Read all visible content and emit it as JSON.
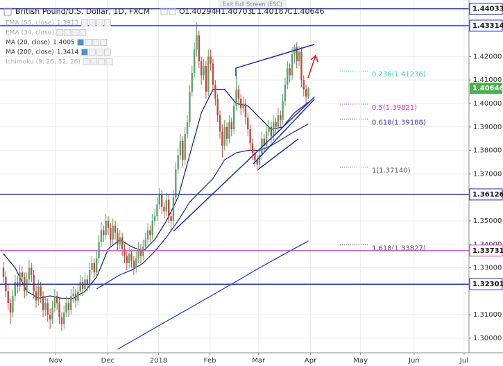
{
  "chart_data": {
    "type": "candlestick",
    "title": "British Pound/U.S. Dollar, 1D, FXCM",
    "ohlc_field_labels": [
      "O",
      "H",
      "L",
      "C"
    ],
    "exit_fullscreen": "Exit Full Screen (ESC)",
    "up_color": "#53a86a",
    "down_color": "#c9453a",
    "last_price_color": "#4caf50",
    "grid": true,
    "xlim": [
      -1.5,
      200
    ],
    "ylim": [
      1.29378,
      1.44408
    ],
    "xticks": [
      {
        "value": 22.4,
        "label": "Nov"
      },
      {
        "value": 44.8,
        "label": "Dec"
      },
      {
        "value": 66.6,
        "label": "2018"
      },
      {
        "value": 88.7,
        "label": "Feb"
      },
      {
        "value": 109.6,
        "label": "Mar"
      },
      {
        "value": 131.9,
        "label": "Apr"
      },
      {
        "value": 153.4,
        "label": "May"
      },
      {
        "value": 176.4,
        "label": "Jun"
      },
      {
        "value": 197.9,
        "label": "Jul"
      }
    ],
    "yticks": [
      {
        "value": 1.42,
        "label": "1.42000"
      },
      {
        "value": 1.41,
        "label": "1.41000"
      },
      {
        "value": 1.4,
        "label": "1.40000"
      },
      {
        "value": 1.39,
        "label": "1.39000"
      },
      {
        "value": 1.38,
        "label": "1.38000"
      },
      {
        "value": 1.37,
        "label": "1.37000"
      },
      {
        "value": 1.35,
        "label": "1.35000"
      },
      {
        "value": 1.34,
        "label": "1.34000"
      },
      {
        "value": 1.33,
        "label": "1.33000"
      },
      {
        "value": 1.31,
        "label": "1.31000"
      },
      {
        "value": 1.3,
        "label": "1.30000"
      }
    ],
    "ohlc": [
      [
        1.33,
        1.3325,
        1.3235,
        1.326
      ],
      [
        1.326,
        1.3285,
        1.3175,
        1.32
      ],
      [
        1.32,
        1.323,
        1.312,
        1.315
      ],
      [
        1.315,
        1.317,
        1.306,
        1.311
      ],
      [
        1.311,
        1.3205,
        1.309,
        1.318
      ],
      [
        1.318,
        1.327,
        1.316,
        1.324
      ],
      [
        1.324,
        1.3265,
        1.319,
        1.322
      ],
      [
        1.322,
        1.331,
        1.32,
        1.328
      ],
      [
        1.328,
        1.3305,
        1.323,
        1.326
      ],
      [
        1.326,
        1.328,
        1.317,
        1.32
      ],
      [
        1.32,
        1.328,
        1.318,
        1.325
      ],
      [
        1.325,
        1.3335,
        1.323,
        1.33
      ],
      [
        1.33,
        1.332,
        1.324,
        1.327
      ],
      [
        1.327,
        1.329,
        1.317,
        1.32
      ],
      [
        1.32,
        1.3225,
        1.313,
        1.316
      ],
      [
        1.316,
        1.325,
        1.314,
        1.322
      ],
      [
        1.322,
        1.324,
        1.315,
        1.318
      ],
      [
        1.318,
        1.32,
        1.309,
        1.312
      ],
      [
        1.312,
        1.318,
        1.3095,
        1.315
      ],
      [
        1.315,
        1.317,
        1.307,
        1.31
      ],
      [
        1.31,
        1.3125,
        1.304,
        1.308
      ],
      [
        1.308,
        1.316,
        1.306,
        1.313
      ],
      [
        1.313,
        1.321,
        1.311,
        1.318
      ],
      [
        1.318,
        1.32,
        1.312,
        1.315
      ],
      [
        1.315,
        1.317,
        1.306,
        1.309
      ],
      [
        1.309,
        1.311,
        1.303,
        1.306
      ],
      [
        1.306,
        1.314,
        1.304,
        1.311
      ],
      [
        1.311,
        1.318,
        1.309,
        1.315
      ],
      [
        1.315,
        1.317,
        1.309,
        1.312
      ],
      [
        1.312,
        1.321,
        1.31,
        1.318
      ],
      [
        1.318,
        1.322,
        1.315,
        1.319
      ],
      [
        1.319,
        1.321,
        1.313,
        1.316
      ],
      [
        1.316,
        1.323,
        1.314,
        1.32
      ],
      [
        1.32,
        1.327,
        1.318,
        1.324
      ],
      [
        1.324,
        1.326,
        1.318,
        1.321
      ],
      [
        1.321,
        1.328,
        1.319,
        1.325
      ],
      [
        1.325,
        1.327,
        1.32,
        1.323
      ],
      [
        1.323,
        1.332,
        1.321,
        1.329
      ],
      [
        1.329,
        1.335,
        1.327,
        1.332
      ],
      [
        1.332,
        1.334,
        1.325,
        1.328
      ],
      [
        1.328,
        1.337,
        1.326,
        1.334
      ],
      [
        1.334,
        1.344,
        1.332,
        1.341
      ],
      [
        1.341,
        1.3495,
        1.339,
        1.346
      ],
      [
        1.346,
        1.348,
        1.341,
        1.344
      ],
      [
        1.344,
        1.353,
        1.342,
        1.35
      ],
      [
        1.35,
        1.352,
        1.344,
        1.347
      ],
      [
        1.347,
        1.349,
        1.339,
        1.342
      ],
      [
        1.342,
        1.351,
        1.34,
        1.348
      ],
      [
        1.348,
        1.35,
        1.342,
        1.345
      ],
      [
        1.345,
        1.347,
        1.337,
        1.34
      ],
      [
        1.34,
        1.346,
        1.338,
        1.343
      ],
      [
        1.343,
        1.345,
        1.335,
        1.338
      ],
      [
        1.338,
        1.34,
        1.332,
        1.335
      ],
      [
        1.335,
        1.337,
        1.329,
        1.332
      ],
      [
        1.332,
        1.339,
        1.33,
        1.336
      ],
      [
        1.336,
        1.338,
        1.33,
        1.333
      ],
      [
        1.333,
        1.335,
        1.327,
        1.33
      ],
      [
        1.33,
        1.337,
        1.328,
        1.334
      ],
      [
        1.334,
        1.341,
        1.332,
        1.338
      ],
      [
        1.338,
        1.34,
        1.332,
        1.335
      ],
      [
        1.335,
        1.342,
        1.333,
        1.339
      ],
      [
        1.339,
        1.345,
        1.337,
        1.342
      ],
      [
        1.342,
        1.349,
        1.34,
        1.346
      ],
      [
        1.346,
        1.348,
        1.341,
        1.344
      ],
      [
        1.344,
        1.353,
        1.342,
        1.35
      ],
      [
        1.35,
        1.355,
        1.348,
        1.352
      ],
      [
        1.352,
        1.36,
        1.35,
        1.357
      ],
      [
        1.357,
        1.364,
        1.355,
        1.361
      ],
      [
        1.361,
        1.363,
        1.353,
        1.356
      ],
      [
        1.356,
        1.358,
        1.351,
        1.354
      ],
      [
        1.354,
        1.362,
        1.352,
        1.359
      ],
      [
        1.359,
        1.361,
        1.349,
        1.352
      ],
      [
        1.352,
        1.354,
        1.346,
        1.35
      ],
      [
        1.35,
        1.363,
        1.348,
        1.36
      ],
      [
        1.36,
        1.375,
        1.358,
        1.372
      ],
      [
        1.372,
        1.381,
        1.37,
        1.378
      ],
      [
        1.378,
        1.387,
        1.376,
        1.384
      ],
      [
        1.384,
        1.386,
        1.373,
        1.376
      ],
      [
        1.376,
        1.39,
        1.374,
        1.387
      ],
      [
        1.387,
        1.395,
        1.385,
        1.392
      ],
      [
        1.392,
        1.408,
        1.39,
        1.405
      ],
      [
        1.405,
        1.416,
        1.403,
        1.413
      ],
      [
        1.413,
        1.426,
        1.411,
        1.423
      ],
      [
        1.423,
        1.4345,
        1.42,
        1.429
      ],
      [
        1.429,
        1.431,
        1.415,
        1.418
      ],
      [
        1.418,
        1.42,
        1.408,
        1.412
      ],
      [
        1.412,
        1.419,
        1.41,
        1.416
      ],
      [
        1.416,
        1.418,
        1.402,
        1.405
      ],
      [
        1.405,
        1.423,
        1.403,
        1.42
      ],
      [
        1.42,
        1.423,
        1.414,
        1.417
      ],
      [
        1.417,
        1.419,
        1.405,
        1.408
      ],
      [
        1.408,
        1.41,
        1.399,
        1.402
      ],
      [
        1.402,
        1.404,
        1.392,
        1.395
      ],
      [
        1.395,
        1.397,
        1.385,
        1.388
      ],
      [
        1.388,
        1.391,
        1.377,
        1.382
      ],
      [
        1.382,
        1.393,
        1.38,
        1.39
      ],
      [
        1.39,
        1.392,
        1.382,
        1.385
      ],
      [
        1.385,
        1.395,
        1.383,
        1.392
      ],
      [
        1.392,
        1.394,
        1.386,
        1.389
      ],
      [
        1.389,
        1.402,
        1.387,
        1.399
      ],
      [
        1.399,
        1.414,
        1.397,
        1.406
      ],
      [
        1.406,
        1.408,
        1.399,
        1.402
      ],
      [
        1.402,
        1.404,
        1.395,
        1.398
      ],
      [
        1.398,
        1.403,
        1.396,
        1.4
      ],
      [
        1.4,
        1.402,
        1.391,
        1.394
      ],
      [
        1.394,
        1.396,
        1.386,
        1.389
      ],
      [
        1.389,
        1.391,
        1.38,
        1.383
      ],
      [
        1.383,
        1.385,
        1.376,
        1.379
      ],
      [
        1.379,
        1.381,
        1.373,
        1.376
      ],
      [
        1.376,
        1.378,
        1.3712,
        1.374
      ],
      [
        1.374,
        1.381,
        1.372,
        1.378
      ],
      [
        1.378,
        1.388,
        1.376,
        1.385
      ],
      [
        1.385,
        1.387,
        1.379,
        1.382
      ],
      [
        1.382,
        1.391,
        1.38,
        1.388
      ],
      [
        1.388,
        1.393,
        1.386,
        1.39
      ],
      [
        1.39,
        1.392,
        1.383,
        1.386
      ],
      [
        1.386,
        1.395,
        1.384,
        1.392
      ],
      [
        1.392,
        1.394,
        1.387,
        1.39
      ],
      [
        1.39,
        1.398,
        1.388,
        1.395
      ],
      [
        1.395,
        1.397,
        1.39,
        1.393
      ],
      [
        1.393,
        1.404,
        1.391,
        1.401
      ],
      [
        1.401,
        1.411,
        1.399,
        1.408
      ],
      [
        1.408,
        1.418,
        1.406,
        1.415
      ],
      [
        1.415,
        1.417,
        1.409,
        1.412
      ],
      [
        1.412,
        1.424,
        1.41,
        1.421
      ],
      [
        1.421,
        1.425,
        1.417,
        1.424
      ],
      [
        1.424,
        1.426,
        1.415,
        1.418
      ],
      [
        1.418,
        1.4245,
        1.416,
        1.422
      ],
      [
        1.422,
        1.424,
        1.407,
        1.41
      ],
      [
        1.41,
        1.412,
        1.403,
        1.406
      ],
      [
        1.406,
        1.408,
        1.4,
        1.4029
      ],
      [
        1.40294,
        1.40703,
        1.40187,
        1.40646
      ]
    ],
    "indicators": [
      {
        "label": "EMA (55, close)",
        "value": 1.3913,
        "color": "#2b3a9e",
        "faded": true,
        "x": [
          40,
          45,
          50,
          55,
          60,
          65,
          70,
          75,
          80,
          85,
          90,
          95,
          100,
          105,
          110,
          115,
          120,
          125,
          131
        ],
        "values": [
          1.321,
          1.324,
          1.327,
          1.329,
          1.332,
          1.337,
          1.343,
          1.35,
          1.358,
          1.363,
          1.368,
          1.376,
          1.379,
          1.38,
          1.38,
          1.382,
          1.385,
          1.388,
          1.3913
        ]
      },
      {
        "label": "EMA (34, close)",
        "faded": true
      },
      {
        "label": "MA (20, close)",
        "value": 1.4005,
        "color": "#1c2a8c",
        "x": [
          0,
          5,
          10,
          15,
          20,
          25,
          30,
          35,
          40,
          45,
          50,
          55,
          60,
          65,
          70,
          75,
          80,
          85,
          90,
          95,
          100,
          105,
          110,
          115,
          120,
          125,
          131
        ],
        "values": [
          1.336,
          1.33,
          1.32,
          1.317,
          1.318,
          1.317,
          1.317,
          1.32,
          1.326,
          1.338,
          1.342,
          1.339,
          1.337,
          1.342,
          1.35,
          1.36,
          1.378,
          1.396,
          1.406,
          1.406,
          1.4,
          1.399,
          1.394,
          1.389,
          1.39,
          1.396,
          1.4005
        ]
      },
      {
        "label": "MA (200, close)",
        "value": 1.3414,
        "color": "#2c49c9",
        "x": [
          49,
          60,
          70,
          80,
          90,
          100,
          110,
          120,
          131
        ],
        "values": [
          1.2953,
          1.3015,
          1.3072,
          1.3128,
          1.3185,
          1.3242,
          1.33,
          1.3355,
          1.3414
        ]
      },
      {
        "label": "Ichimoku (9, 26, 52, 26)",
        "faded": true
      }
    ],
    "hlines": [
      {
        "value": 1.44033,
        "color": "#1f2fd1"
      },
      {
        "value": 1.43314,
        "color": "#1f2fd1"
      },
      {
        "value": 1.36126,
        "color": "#1f2fd1"
      },
      {
        "value": 1.33731,
        "color": "#e040e0"
      },
      {
        "value": 1.32301,
        "color": "#1f2fd1"
      }
    ],
    "fib_labels": [
      {
        "text": "0.236(1.41236)",
        "value": 1.41236,
        "color": "#26c6da"
      },
      {
        "text": "0.5(1.39821)",
        "value": 1.39821,
        "color": "#d030d0"
      },
      {
        "text": "0.618(1.39188)",
        "value": 1.39188,
        "color": "#3030c8"
      },
      {
        "text": "1(1.37140)",
        "value": 1.3714,
        "color": "#555555"
      },
      {
        "text": "1.618(1.33827)",
        "value": 1.33827,
        "color": "#555555"
      }
    ]
  }
}
